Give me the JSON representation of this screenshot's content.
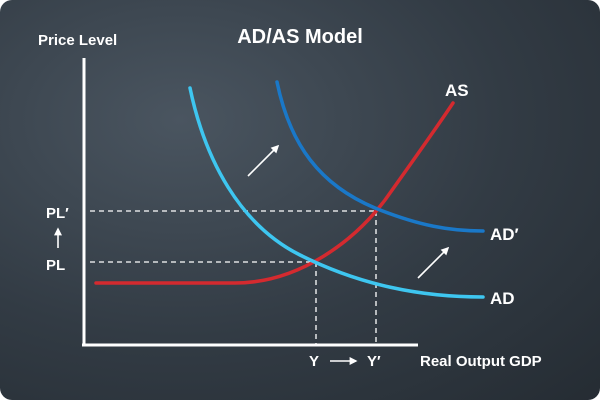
{
  "title": "AD/AS Model",
  "axes": {
    "y_label": "Price Level",
    "x_label": "Real Output GDP"
  },
  "curves": {
    "as_label": "AS",
    "ad_label": "AD",
    "ad_shift_label": "AD′"
  },
  "levels": {
    "price_initial": "PL",
    "price_new": "PL′",
    "output_initial": "Y",
    "output_new": "Y′"
  },
  "colors": {
    "background": "#323b44",
    "as_curve": "#d42a2f",
    "ad_curve": "#3ec6f0",
    "ad_shift_curve": "#1a78c8",
    "axes": "#ffffff"
  }
}
